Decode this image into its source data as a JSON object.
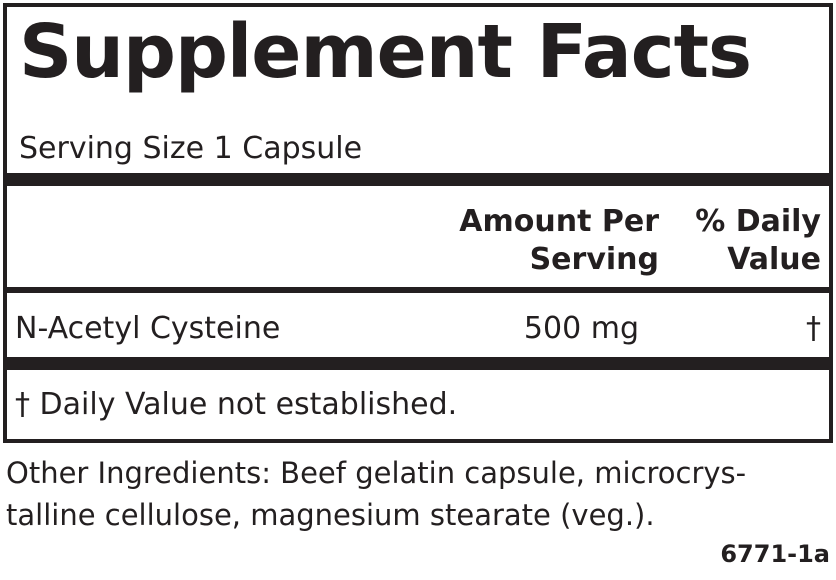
{
  "title": "Supplement Facts",
  "serving_size": "Serving Size 1 Capsule",
  "columns": {
    "amount_line1": "Amount Per",
    "amount_line2": "Serving",
    "dv_line1": "% Daily",
    "dv_line2": "Value"
  },
  "rows": [
    {
      "name": "N-Acetyl Cysteine",
      "amount": "500 mg",
      "dv": "†"
    }
  ],
  "footnote": "† Daily Value not established.",
  "other_ingredients": {
    "line1": "Other Ingredients: Beef gelatin capsule, microcrys-",
    "line2": "talline cellulose, magnesium stearate (veg.)."
  },
  "code": "6771-1a",
  "colors": {
    "ink": "#231f20",
    "background": "#ffffff"
  }
}
